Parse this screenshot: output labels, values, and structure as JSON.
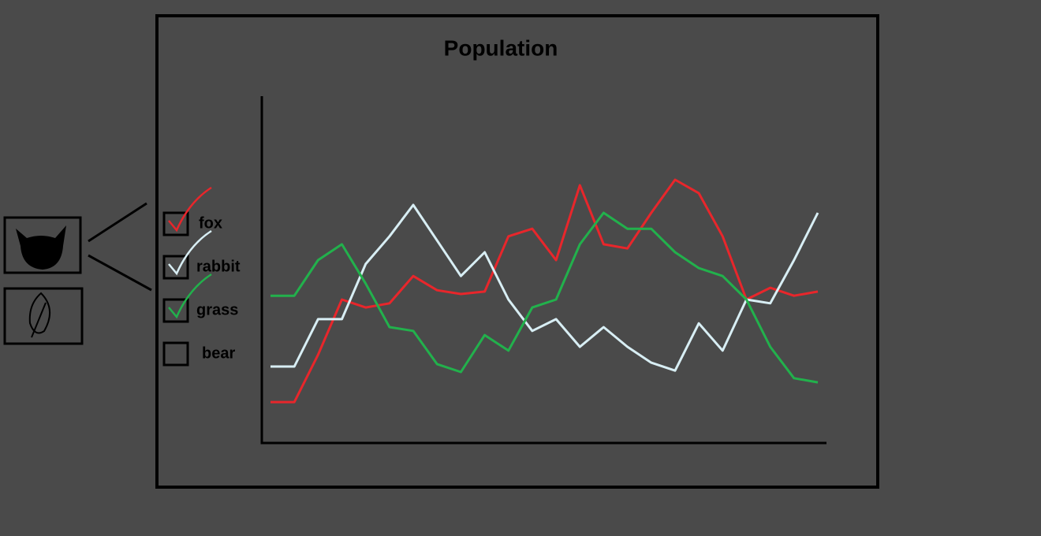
{
  "chart_data": {
    "type": "line",
    "title": "Population",
    "ylim": [
      0,
      100
    ],
    "series": [
      {
        "name": "fox",
        "color": "#e8262b",
        "values": [
          11.4,
          11.4,
          25.1,
          41.1,
          38.8,
          40.0,
          47.9,
          43.8,
          42.7,
          43.4,
          59.4,
          61.6,
          52.5,
          74.2,
          57.1,
          55.9,
          66.2,
          75.8,
          71.9,
          59.4,
          41.1,
          44.5,
          42.2,
          43.4
        ]
      },
      {
        "name": "rabbit",
        "color": "#d8eef4",
        "values": [
          21.7,
          21.7,
          35.4,
          35.4,
          51.4,
          59.4,
          68.5,
          58.2,
          47.9,
          54.8,
          41.1,
          32.0,
          35.4,
          27.4,
          33.1,
          27.4,
          22.8,
          20.5,
          34.2,
          26.3,
          41.1,
          40.0,
          52.5,
          66.2
        ]
      },
      {
        "name": "grass",
        "color": "#22b14c",
        "values": [
          42.2,
          42.2,
          52.5,
          57.1,
          45.7,
          33.1,
          32.0,
          22.4,
          20.1,
          30.8,
          26.3,
          38.8,
          41.1,
          57.1,
          66.2,
          61.6,
          61.6,
          54.8,
          50.2,
          47.9,
          41.1,
          27.4,
          18.3,
          17.1
        ]
      },
      {
        "name": "bear",
        "values": [
          null,
          null,
          null,
          null,
          null,
          null,
          null,
          null,
          null,
          null,
          null,
          null,
          null,
          null,
          null,
          null,
          null,
          null,
          null,
          null,
          null,
          null,
          null,
          null
        ]
      }
    ]
  }
}
